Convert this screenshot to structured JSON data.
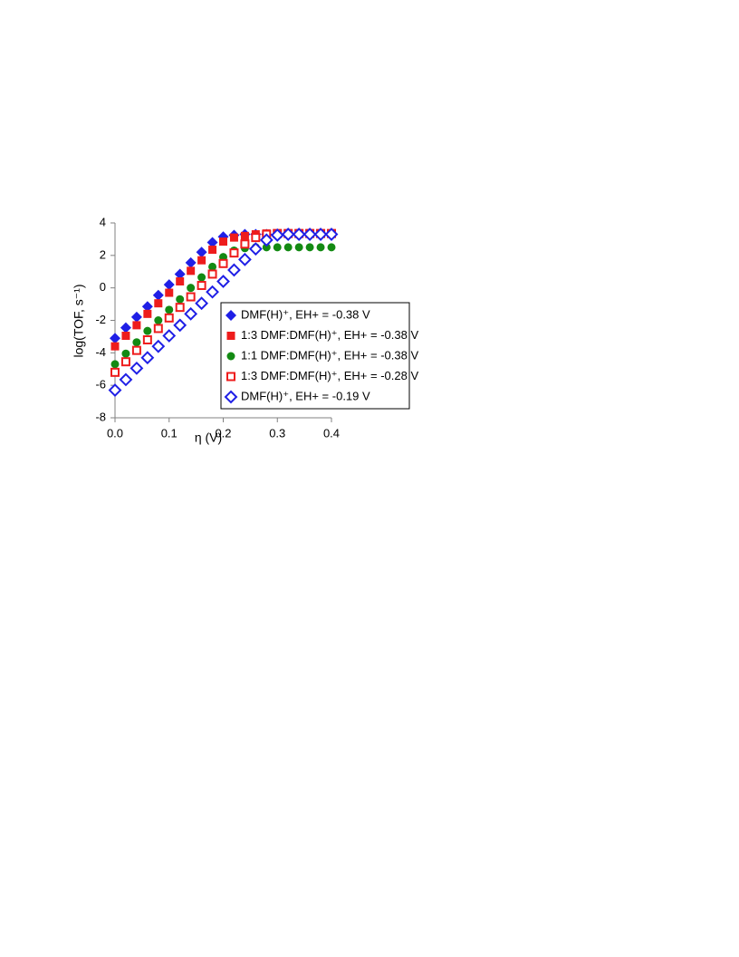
{
  "chart_data": {
    "type": "scatter",
    "x_label": "η (V)",
    "y_label": "log(TOF, s⁻¹)",
    "x": [
      0,
      0.02,
      0.04,
      0.06,
      0.08,
      0.1,
      0.12,
      0.14,
      0.16,
      0.18,
      0.2,
      0.22,
      0.24,
      0.26,
      0.28,
      0.3,
      0.32,
      0.34,
      0.36,
      0.38,
      0.4
    ],
    "series": [
      {
        "name": "DMF(H)⁺, EH+ = -0.38 V",
        "color": "#1f1fe6",
        "marker": "diamond",
        "filled": true,
        "values": [
          -3.1,
          -2.45,
          -1.8,
          -1.15,
          -0.45,
          0.2,
          0.85,
          1.55,
          2.2,
          2.8,
          3.15,
          3.25,
          3.3,
          3.3,
          3.3,
          3.3,
          3.3,
          3.3,
          3.3,
          3.3,
          3.3
        ]
      },
      {
        "name": "1:3 DMF:DMF(H)⁺, EH+ = -0.38 V",
        "color": "#ee1c1c",
        "marker": "square",
        "filled": true,
        "values": [
          -3.6,
          -2.95,
          -2.3,
          -1.6,
          -0.95,
          -0.3,
          0.4,
          1.05,
          1.7,
          2.35,
          2.85,
          3.1,
          3.2,
          3.3,
          3.35,
          3.35,
          3.35,
          3.35,
          3.35,
          3.35,
          3.35
        ]
      },
      {
        "name": "1:1 DMF:DMF(H)⁺, EH+ = -0.38 V",
        "color": "#138a13",
        "marker": "circle",
        "filled": true,
        "values": [
          -4.7,
          -4.05,
          -3.35,
          -2.65,
          -2.0,
          -1.35,
          -0.7,
          0.0,
          0.65,
          1.3,
          1.9,
          2.3,
          2.45,
          2.5,
          2.5,
          2.5,
          2.5,
          2.5,
          2.5,
          2.5,
          2.5
        ]
      },
      {
        "name": "1:3 DMF:DMF(H)⁺, EH+ = -0.28 V",
        "color": "#ee1c1c",
        "marker": "square",
        "filled": false,
        "values": [
          -5.2,
          -4.55,
          -3.85,
          -3.2,
          -2.5,
          -1.85,
          -1.2,
          -0.55,
          0.15,
          0.85,
          1.5,
          2.15,
          2.7,
          3.1,
          3.3,
          3.35,
          3.35,
          3.35,
          3.35,
          3.35,
          3.35
        ]
      },
      {
        "name": "DMF(H)⁺, EH+ = -0.19 V",
        "color": "#1f1fe6",
        "marker": "diamond",
        "filled": false,
        "values": [
          -6.3,
          -5.65,
          -4.95,
          -4.3,
          -3.6,
          -2.95,
          -2.3,
          -1.6,
          -0.95,
          -0.25,
          0.4,
          1.1,
          1.75,
          2.4,
          2.95,
          3.25,
          3.3,
          3.3,
          3.3,
          3.3,
          3.3
        ]
      }
    ],
    "xlim": [
      0,
      0.4
    ],
    "xticks": [
      {
        "value": 0,
        "label": "0.0"
      },
      0.1,
      0.2,
      0.3,
      0.4
    ],
    "ylim": [
      -8,
      4
    ],
    "yticks": [
      -8,
      -6,
      -4,
      -2,
      0,
      2,
      4
    ],
    "grid": false,
    "legend": "lower right"
  }
}
